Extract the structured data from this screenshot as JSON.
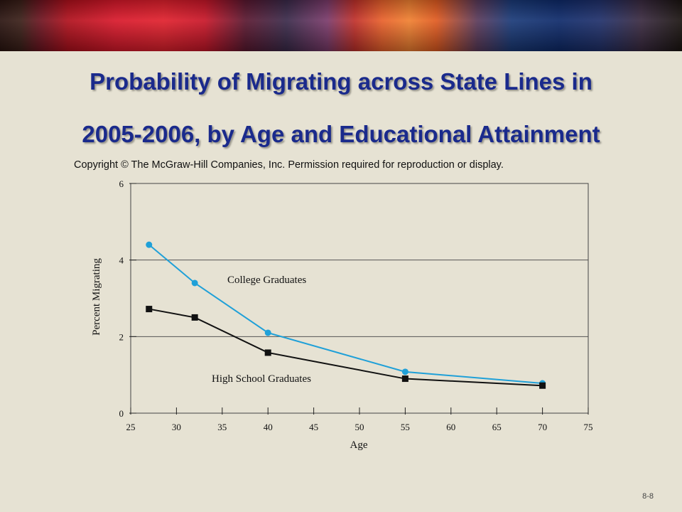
{
  "slide": {
    "title_line1": "Probability of Migrating across State Lines in",
    "title_line2": "2005-2006, by Age and Educational Attainment",
    "copyright": "Copyright © The McGraw-Hill Companies, Inc. Permission required for reproduction or display.",
    "slide_number": "8-8"
  },
  "colors": {
    "title": "#1a2a8c",
    "college": "#1fa0d8",
    "high_school": "#111111",
    "gridline": "#555555"
  },
  "chart_data": {
    "type": "line",
    "title": "",
    "xlabel": "Age",
    "ylabel": "Percent Migrating",
    "xlim": [
      25,
      75
    ],
    "ylim": [
      0,
      6
    ],
    "xticks": [
      25,
      30,
      35,
      40,
      45,
      50,
      55,
      60,
      65,
      70,
      75
    ],
    "yticks": [
      0,
      2,
      4,
      6
    ],
    "grid": "horizontal",
    "series": [
      {
        "name": "College Graduates",
        "marker": "circle",
        "color": "#1fa0d8",
        "x": [
          27,
          32,
          40,
          55,
          70
        ],
        "y": [
          4.4,
          3.4,
          2.1,
          1.08,
          0.78
        ]
      },
      {
        "name": "High School Graduates",
        "marker": "square",
        "color": "#111111",
        "x": [
          27,
          32,
          40,
          55,
          70
        ],
        "y": [
          2.72,
          2.5,
          1.58,
          0.9,
          0.72
        ]
      }
    ]
  }
}
